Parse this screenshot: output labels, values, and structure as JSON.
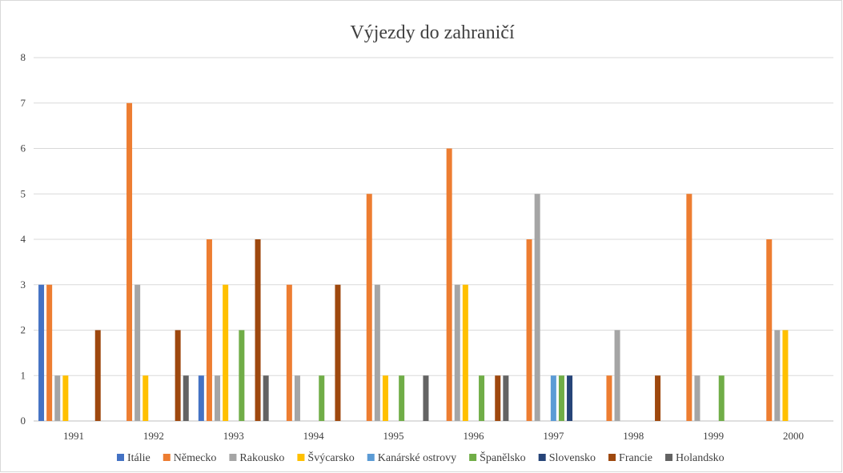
{
  "chart_data": {
    "type": "bar",
    "title": "Výjezdy do zahraničí",
    "xlabel": "",
    "ylabel": "",
    "ylim": [
      0,
      8
    ],
    "yticks": [
      "0",
      "1",
      "2",
      "3",
      "4",
      "5",
      "6",
      "7",
      "8"
    ],
    "grid": true,
    "legend_position": "bottom",
    "categories": [
      "1991",
      "1992",
      "1993",
      "1994",
      "1995",
      "1996",
      "1997",
      "1998",
      "1999",
      "2000"
    ],
    "series": [
      {
        "name": "Itálie",
        "color": "#4472c4",
        "values": [
          3,
          0,
          1,
          0,
          0,
          0,
          0,
          0,
          0,
          0
        ]
      },
      {
        "name": "Německo",
        "color": "#ed7d31",
        "values": [
          3,
          7,
          4,
          3,
          5,
          6,
          4,
          1,
          5,
          4
        ]
      },
      {
        "name": "Rakousko",
        "color": "#a5a5a5",
        "values": [
          1,
          3,
          1,
          1,
          3,
          3,
          5,
          2,
          1,
          2
        ]
      },
      {
        "name": "Švýcarsko",
        "color": "#ffc000",
        "values": [
          1,
          1,
          3,
          0,
          1,
          3,
          0,
          0,
          0,
          2
        ]
      },
      {
        "name": "Kanárské ostrovy",
        "color": "#5b9bd5",
        "values": [
          0,
          0,
          0,
          0,
          0,
          0,
          1,
          0,
          0,
          0
        ]
      },
      {
        "name": "Španělsko",
        "color": "#70ad47",
        "values": [
          0,
          0,
          2,
          1,
          1,
          1,
          1,
          0,
          1,
          0
        ]
      },
      {
        "name": "Slovensko",
        "color": "#264478",
        "values": [
          0,
          0,
          0,
          0,
          0,
          0,
          1,
          0,
          0,
          0
        ]
      },
      {
        "name": "Francie",
        "color": "#9e480e",
        "values": [
          2,
          2,
          4,
          3,
          0,
          1,
          0,
          1,
          0,
          0
        ]
      },
      {
        "name": "Holandsko",
        "color": "#636363",
        "values": [
          0,
          1,
          1,
          0,
          1,
          1,
          0,
          0,
          0,
          0
        ]
      }
    ]
  }
}
